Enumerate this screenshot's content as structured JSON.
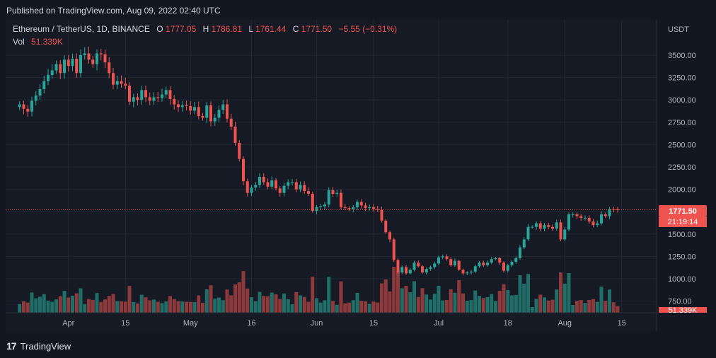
{
  "header": {
    "published": "Published on TradingView.com, Aug 09, 2022 02:40 UTC"
  },
  "footer": {
    "logo_mark": "17",
    "logo_text": "TradingView"
  },
  "legend": {
    "symbol": "Ethereum / TetherUS, 1D, BINANCE",
    "o_label": "O",
    "o_value": "1777.05",
    "h_label": "H",
    "h_value": "1786.81",
    "l_label": "L",
    "l_value": "1761.44",
    "c_label": "C",
    "c_value": "1771.50",
    "change": "−5.55 (−0.31%)",
    "vol_label": "Vol",
    "vol_value": "51.339K"
  },
  "price_axis": {
    "unit": "USDT",
    "ticks": [
      "3500.00",
      "3250.00",
      "3000.00",
      "2750.00",
      "2500.00",
      "2250.00",
      "2000.00",
      "1750.00",
      "1500.00",
      "1250.00",
      "1000.00",
      "750.00"
    ]
  },
  "last_price": {
    "value": "1771.50",
    "countdown": "21:19:14",
    "vol_badge": "51.339K"
  },
  "colors": {
    "up": "#26a69a",
    "down": "#ef5350",
    "up_vol": "#1f6f68",
    "down_vol": "#8e3a3c",
    "background": "#131722",
    "grid": "#232734",
    "text": "#b2b5be"
  },
  "chart_data": {
    "type": "candlestick",
    "symbol": "Ethereum / TetherUS",
    "interval": "1D",
    "exchange": "BINANCE",
    "y_unit": "USDT",
    "ylim": [
      600,
      3800
    ],
    "x_ticks": [
      "Apr",
      "15",
      "May",
      "16",
      "Jun",
      "15",
      "Jul",
      "18",
      "Aug",
      "15"
    ],
    "x_tick_dates": [
      "2022-04-01",
      "2022-04-15",
      "2022-05-01",
      "2022-05-16",
      "2022-06-01",
      "2022-06-15",
      "2022-07-01",
      "2022-07-18",
      "2022-08-01",
      "2022-08-15"
    ],
    "start_date": "2022-03-20",
    "closes": [
      2950,
      2900,
      2870,
      2990,
      3050,
      3120,
      3210,
      3280,
      3330,
      3400,
      3300,
      3450,
      3380,
      3460,
      3300,
      3500,
      3520,
      3450,
      3400,
      3520,
      3510,
      3420,
      3300,
      3170,
      3210,
      3180,
      3160,
      2980,
      3030,
      3000,
      3110,
      3030,
      2990,
      3030,
      3020,
      3060,
      3110,
      3010,
      2950,
      2920,
      2940,
      2930,
      2880,
      2920,
      2820,
      2800,
      2940,
      2760,
      2800,
      2890,
      2950,
      2790,
      2700,
      2520,
      2340,
      2090,
      1960,
      2020,
      2050,
      2140,
      2080,
      2030,
      2100,
      2010,
      1960,
      2040,
      2080,
      2080,
      2000,
      2050,
      1980,
      1950,
      1760,
      1800,
      1810,
      1830,
      1990,
      1950,
      1960,
      1800,
      1790,
      1780,
      1800,
      1860,
      1820,
      1790,
      1800,
      1780,
      1770,
      1650,
      1520,
      1440,
      1210,
      1070,
      1130,
      1060,
      1100,
      1180,
      1140,
      1070,
      1110,
      1130,
      1170,
      1240,
      1250,
      1220,
      1150,
      1200,
      1100,
      1060,
      1070,
      1080,
      1140,
      1180,
      1150,
      1180,
      1220,
      1230,
      1180,
      1090,
      1150,
      1190,
      1230,
      1350,
      1440,
      1580,
      1580,
      1620,
      1560,
      1600,
      1580,
      1560,
      1630,
      1440,
      1550,
      1720,
      1720,
      1700,
      1680,
      1680,
      1640,
      1600,
      1620,
      1720,
      1700,
      1780,
      1777,
      1771.5
    ],
    "volume_summary": {
      "last": "51.339K"
    }
  }
}
